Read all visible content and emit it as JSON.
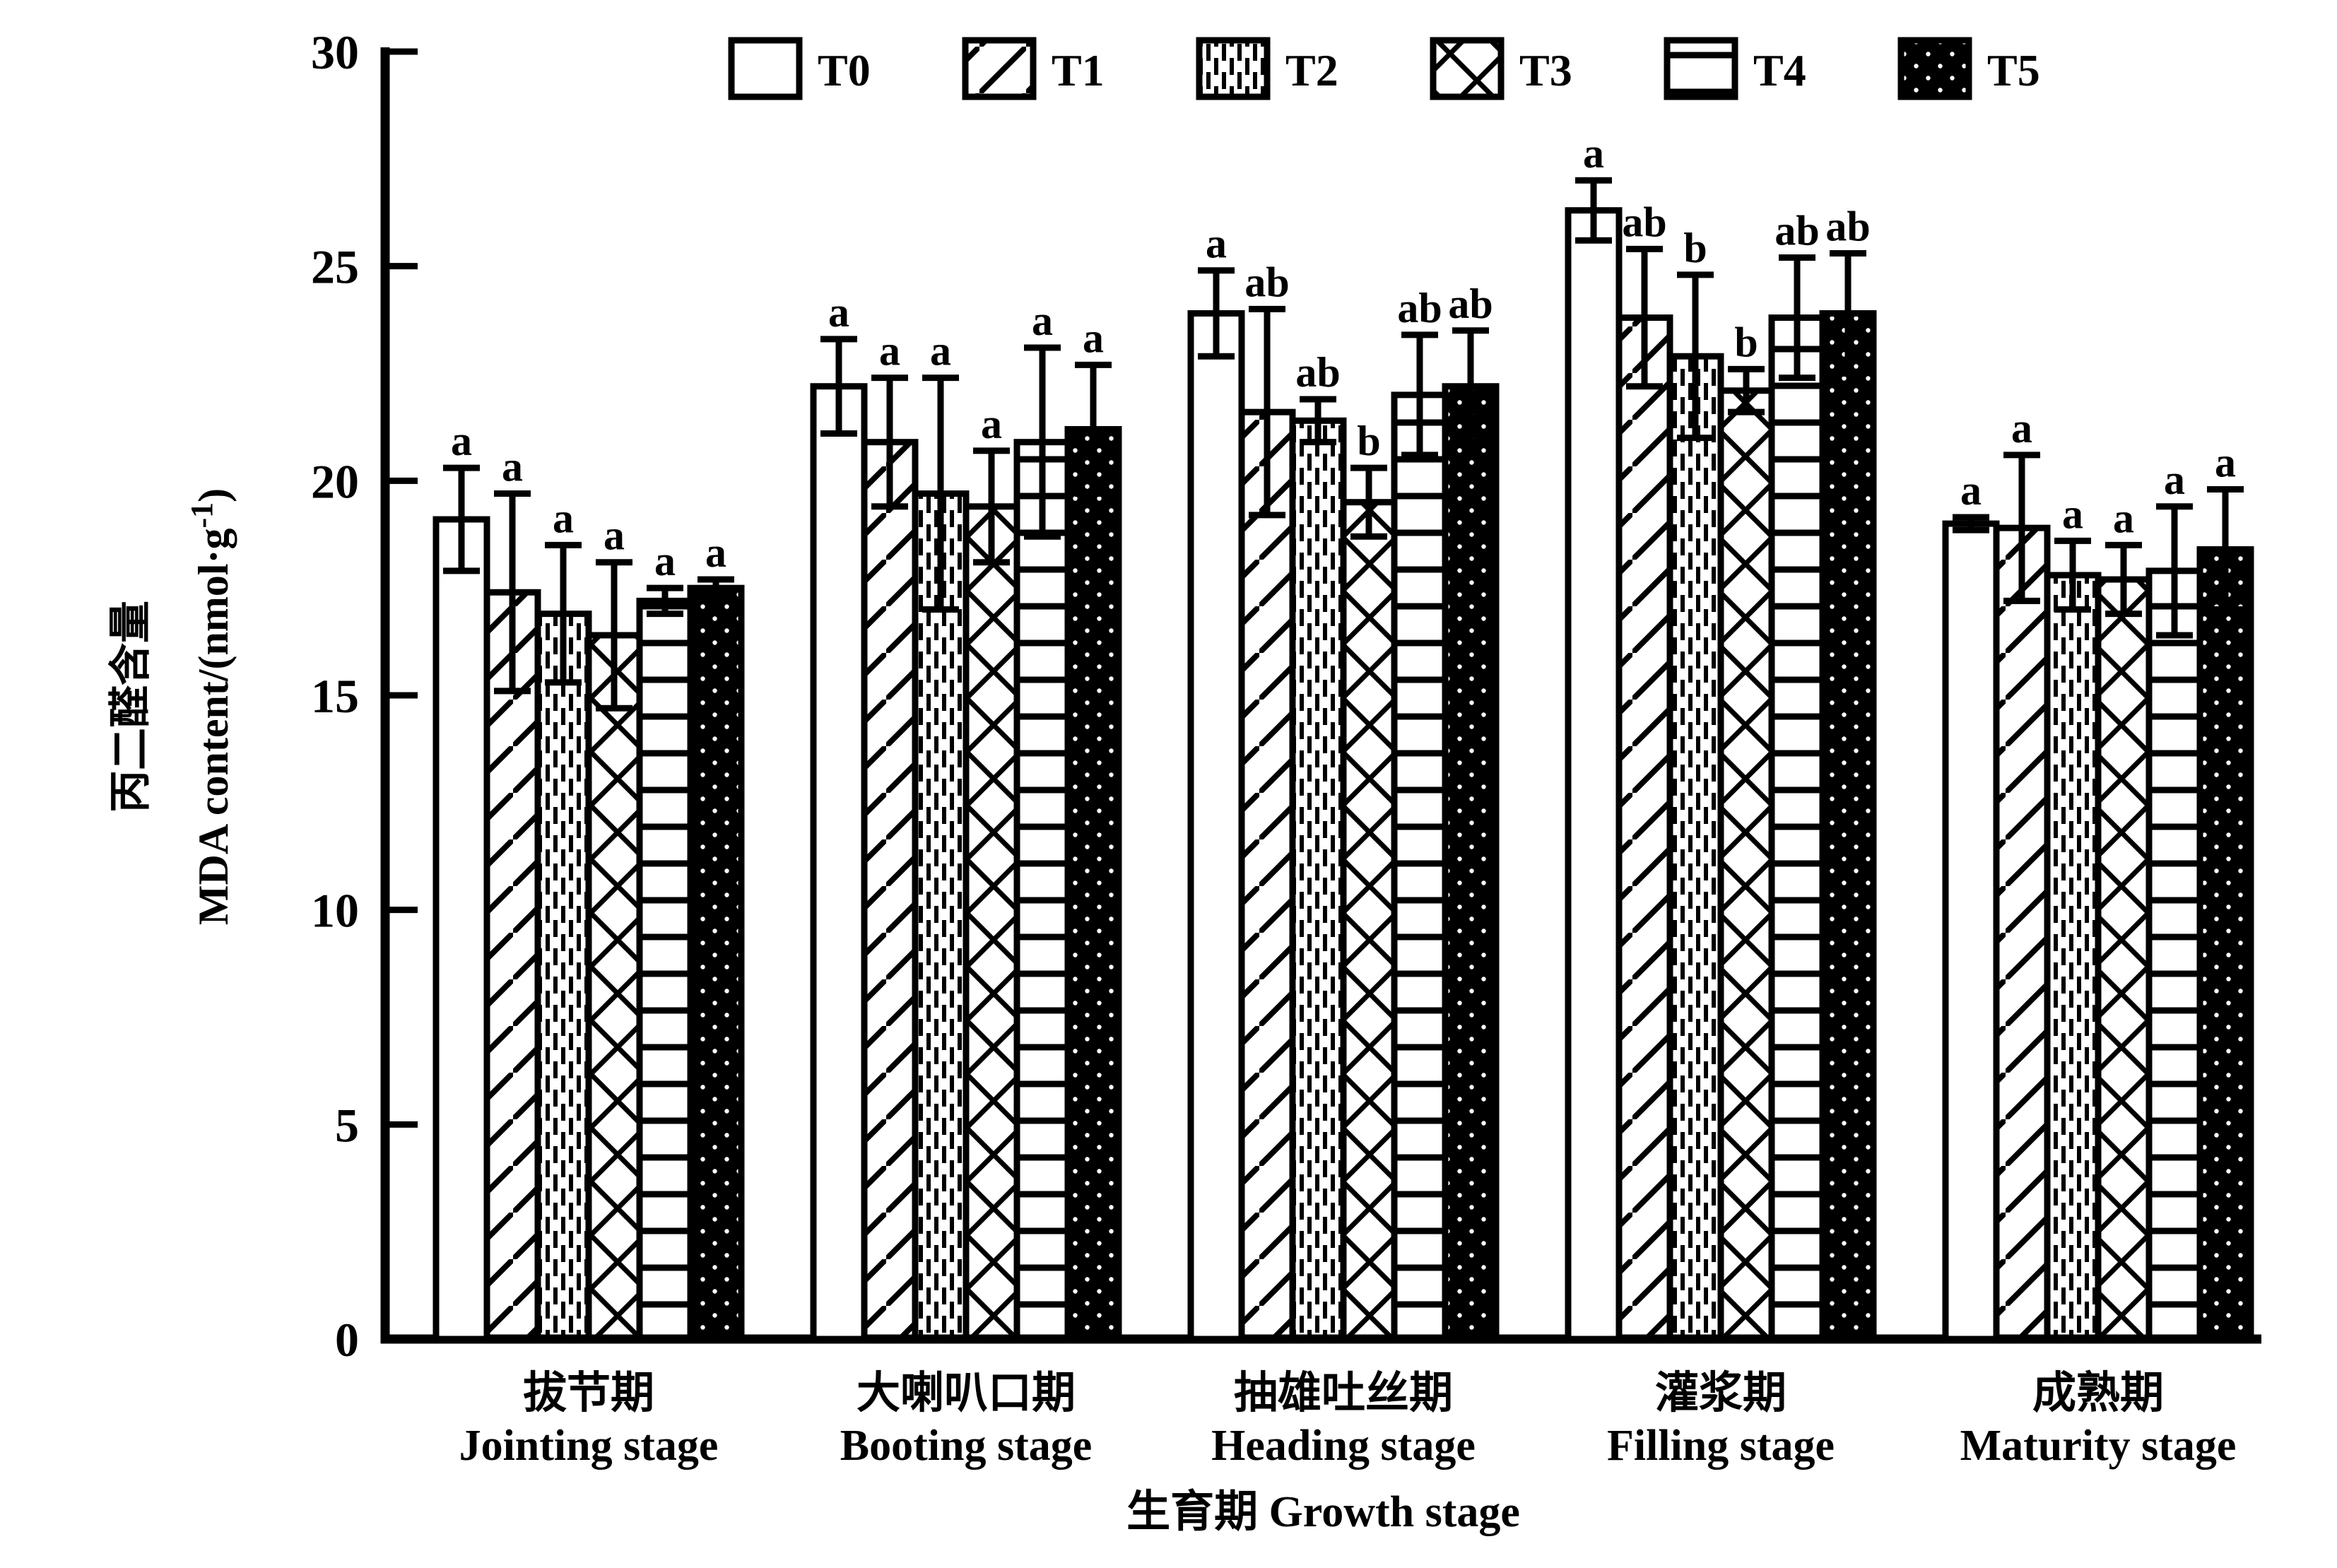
{
  "figure": {
    "background": "#ffffff",
    "ink": "#000000"
  },
  "y_axis": {
    "label_cn": "丙二醛含量",
    "label_en": "MDA content/(nmol·g⁻¹)",
    "min": 0,
    "max": 30,
    "ticks": [
      0,
      5,
      10,
      15,
      20,
      25,
      30
    ]
  },
  "x_axis": {
    "title": "生育期 Growth stage"
  },
  "legend": {
    "items": [
      "T0",
      "T1",
      "T2",
      "T3",
      "T4",
      "T5"
    ]
  },
  "chart_data": {
    "type": "bar",
    "title": "",
    "xlabel": "生育期 Growth stage",
    "ylabel_cn": "丙二醛含量",
    "ylabel_en": "MDA content/(nmol·g⁻¹)",
    "ylim": [
      0,
      30
    ],
    "yticks": [
      0,
      5,
      10,
      15,
      20,
      25,
      30
    ],
    "grid": false,
    "legend_position": "top",
    "error_bars": true,
    "categories": [
      {
        "cn": "拔节期",
        "en": "Jointing stage"
      },
      {
        "cn": "大喇叭口期",
        "en": "Booting stage"
      },
      {
        "cn": "抽雄吐丝期",
        "en": "Heading stage"
      },
      {
        "cn": "灌浆期",
        "en": "Filling stage"
      },
      {
        "cn": "成熟期",
        "en": "Maturity stage"
      }
    ],
    "series": [
      {
        "name": "T0",
        "pattern": "plain",
        "values": [
          19.1,
          22.2,
          23.9,
          26.3,
          19.0
        ],
        "errors": [
          1.2,
          1.1,
          1.0,
          0.7,
          0.15
        ],
        "letters": [
          "a",
          "a",
          "a",
          "a",
          "a"
        ]
      },
      {
        "name": "T1",
        "pattern": "diagonal-hatch",
        "values": [
          17.4,
          20.9,
          21.6,
          23.8,
          18.9
        ],
        "errors": [
          2.3,
          1.5,
          2.4,
          1.6,
          1.7
        ],
        "letters": [
          "a",
          "a",
          "ab",
          "ab",
          "a"
        ]
      },
      {
        "name": "T2",
        "pattern": "dotted-dash",
        "values": [
          16.9,
          19.7,
          21.4,
          22.9,
          17.8
        ],
        "errors": [
          1.6,
          2.7,
          0.5,
          1.9,
          0.8
        ],
        "letters": [
          "a",
          "a",
          "ab",
          "b",
          "a"
        ]
      },
      {
        "name": "T3",
        "pattern": "diamond-crosshatch",
        "values": [
          16.4,
          19.4,
          19.5,
          22.1,
          17.7
        ],
        "errors": [
          1.7,
          1.3,
          0.8,
          0.5,
          0.8
        ],
        "letters": [
          "a",
          "a",
          "b",
          "b",
          "a"
        ]
      },
      {
        "name": "T4",
        "pattern": "horizontal-lines",
        "values": [
          17.2,
          20.9,
          22.0,
          23.8,
          17.9
        ],
        "errors": [
          0.3,
          2.2,
          1.4,
          1.4,
          1.5
        ],
        "letters": [
          "a",
          "a",
          "ab",
          "ab",
          "a"
        ]
      },
      {
        "name": "T5",
        "pattern": "black-white-dots",
        "values": [
          17.5,
          21.2,
          22.2,
          23.9,
          18.4
        ],
        "errors": [
          0.2,
          1.5,
          1.3,
          1.4,
          1.4
        ],
        "letters": [
          "a",
          "a",
          "ab",
          "ab",
          "a"
        ]
      }
    ]
  }
}
